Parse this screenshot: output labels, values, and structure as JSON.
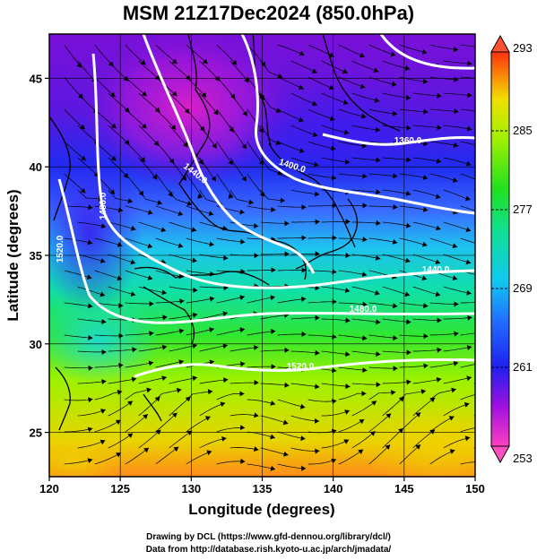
{
  "title": "MSM 21Z17Dec2024 (850.0hPa)",
  "x_axis": {
    "label": "Longitude (degrees)",
    "ticks": [
      "120",
      "125",
      "130",
      "135",
      "140",
      "145",
      "150"
    ],
    "range": [
      120,
      150
    ]
  },
  "y_axis": {
    "label": "Latitude  (degrees)",
    "ticks": [
      "25",
      "30",
      "35",
      "40",
      "45"
    ],
    "range": [
      22.5,
      47.5
    ]
  },
  "colorbar": {
    "ticks": [
      "293",
      "285",
      "277",
      "269",
      "261",
      "253"
    ],
    "range": [
      253,
      293
    ]
  },
  "contours": {
    "labels": [
      "1360.0",
      "1400.0",
      "1440.0",
      "1480.0",
      "1520.0",
      "1440.0",
      "1480.0",
      "1520.0"
    ],
    "color": "#ffffff"
  },
  "credits": {
    "line1": "Drawing by DCL (https://www.gfd-dennou.org/library/dcl/)",
    "line2": "Data from http://database.rish.kyoto-u.ac.jp/arch/jmadata/"
  }
}
